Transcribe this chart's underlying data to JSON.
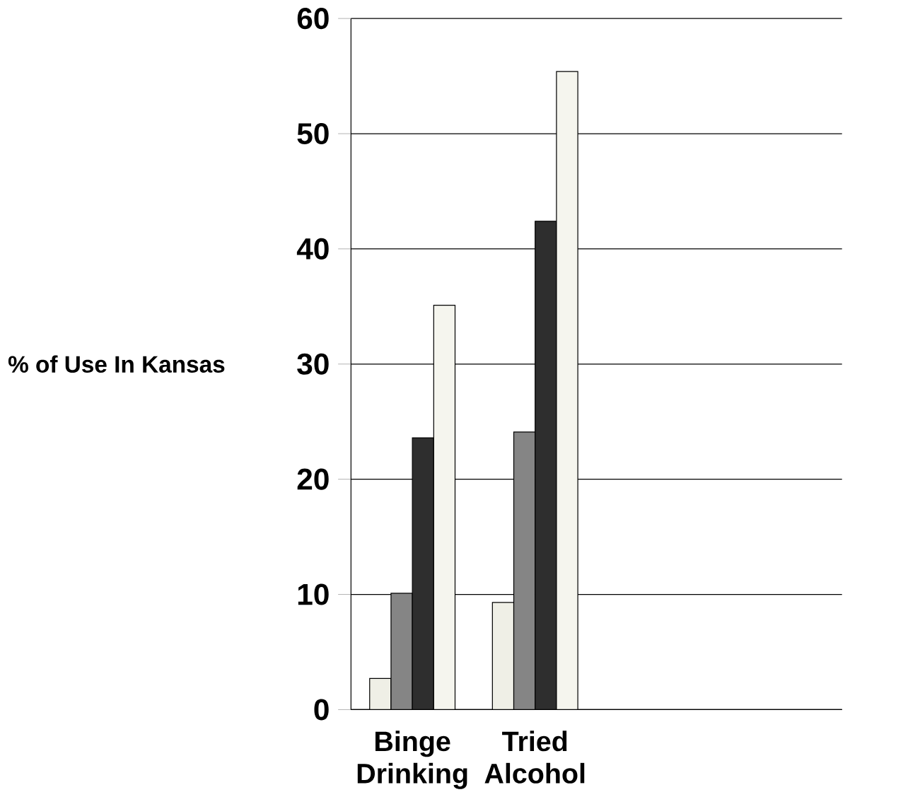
{
  "chart_data": {
    "type": "bar",
    "ylabel": "% of Use In Kansas",
    "categories": [
      "Binge Drinking",
      "Tried Alcohol",
      null,
      null
    ],
    "series": [
      {
        "color": "#efefe6",
        "values": [
          2.7,
          9.3,
          null,
          null
        ]
      },
      {
        "color": "#858585",
        "values": [
          10.1,
          24.1,
          null,
          null
        ]
      },
      {
        "color": "#2e2e2e",
        "values": [
          23.6,
          42.4,
          null,
          null
        ]
      },
      {
        "color": "#f5f5ee",
        "values": [
          35.1,
          55.4,
          null,
          null
        ]
      }
    ],
    "ylim": [
      0,
      60
    ],
    "yticks": [
      0,
      10,
      20,
      30,
      40,
      50,
      60
    ],
    "grid": "y"
  }
}
